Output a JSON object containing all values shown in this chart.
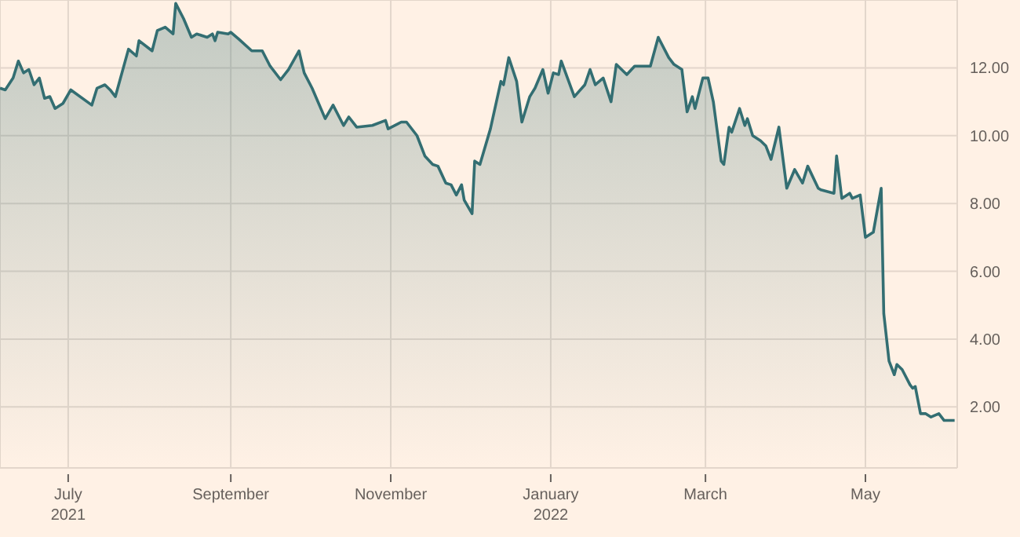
{
  "chart_data": {
    "type": "area",
    "x": [
      "2021-06-05",
      "2021-06-07",
      "2021-06-10",
      "2021-06-12",
      "2021-06-14",
      "2021-06-16",
      "2021-06-18",
      "2021-06-20",
      "2021-06-22",
      "2021-06-24",
      "2021-06-26",
      "2021-06-29",
      "2021-07-02",
      "2021-07-10",
      "2021-07-12",
      "2021-07-15",
      "2021-07-17",
      "2021-07-19",
      "2021-07-24",
      "2021-07-27",
      "2021-07-28",
      "2021-08-02",
      "2021-08-04",
      "2021-08-07",
      "2021-08-10",
      "2021-08-11",
      "2021-08-14",
      "2021-08-17",
      "2021-08-19",
      "2021-08-23",
      "2021-08-25",
      "2021-08-26",
      "2021-08-27",
      "2021-08-31",
      "2021-09-01",
      "2021-09-04",
      "2021-09-09",
      "2021-09-13",
      "2021-09-16",
      "2021-09-20",
      "2021-09-23",
      "2021-09-27",
      "2021-09-29",
      "2021-10-02",
      "2021-10-07",
      "2021-10-10",
      "2021-10-14",
      "2021-10-16",
      "2021-10-19",
      "2021-10-25",
      "2021-10-30",
      "2021-10-31",
      "2021-11-05",
      "2021-11-07",
      "2021-11-11",
      "2021-11-14",
      "2021-11-17",
      "2021-11-19",
      "2021-11-22",
      "2021-11-24",
      "2021-11-26",
      "2021-11-28",
      "2021-11-29",
      "2021-12-02",
      "2021-12-03",
      "2021-12-05",
      "2021-12-09",
      "2021-12-13",
      "2021-12-14",
      "2021-12-16",
      "2021-12-19",
      "2021-12-21",
      "2021-12-24",
      "2021-12-26",
      "2021-12-29",
      "2021-12-31",
      "2022-01-02",
      "2022-01-04",
      "2022-01-05",
      "2022-01-10",
      "2022-01-14",
      "2022-01-16",
      "2022-01-18",
      "2022-01-21",
      "2022-01-24",
      "2022-01-26",
      "2022-01-30",
      "2022-02-02",
      "2022-02-08",
      "2022-02-11",
      "2022-02-15",
      "2022-02-17",
      "2022-02-20",
      "2022-02-22",
      "2022-02-24",
      "2022-02-25",
      "2022-02-28",
      "2022-03-02",
      "2022-03-04",
      "2022-03-07",
      "2022-03-08",
      "2022-03-10",
      "2022-03-11",
      "2022-03-14",
      "2022-03-16",
      "2022-03-17",
      "2022-03-19",
      "2022-03-22",
      "2022-03-24",
      "2022-03-26",
      "2022-03-29",
      "2022-04-01",
      "2022-04-04",
      "2022-04-07",
      "2022-04-09",
      "2022-04-13",
      "2022-04-14",
      "2022-04-19",
      "2022-04-20",
      "2022-04-22",
      "2022-04-25",
      "2022-04-26",
      "2022-04-29",
      "2022-05-01",
      "2022-05-04",
      "2022-05-07",
      "2022-05-08",
      "2022-05-10",
      "2022-05-12",
      "2022-05-13",
      "2022-05-15",
      "2022-05-18",
      "2022-05-19",
      "2022-05-20",
      "2022-05-22",
      "2022-05-24",
      "2022-05-26",
      "2022-05-29",
      "2022-05-31",
      "2022-06-04"
    ],
    "series": [
      {
        "color": "#336e72",
        "values": [
          11.4,
          11.35,
          11.7,
          12.2,
          11.85,
          11.95,
          11.5,
          11.7,
          11.1,
          11.15,
          10.8,
          10.95,
          11.35,
          10.9,
          11.4,
          11.5,
          11.35,
          11.15,
          12.55,
          12.35,
          12.8,
          12.5,
          13.1,
          13.2,
          13.0,
          13.9,
          13.45,
          12.9,
          13.0,
          12.9,
          13.0,
          12.8,
          13.05,
          13.0,
          13.05,
          12.85,
          12.5,
          12.5,
          12.05,
          11.65,
          11.95,
          12.5,
          11.85,
          11.4,
          10.5,
          10.9,
          10.3,
          10.55,
          10.25,
          10.3,
          10.45,
          10.2,
          10.4,
          10.4,
          10.0,
          9.4,
          9.15,
          9.1,
          8.6,
          8.55,
          8.25,
          8.55,
          8.1,
          7.7,
          9.25,
          9.15,
          10.2,
          11.6,
          11.5,
          12.3,
          11.6,
          10.4,
          11.15,
          11.4,
          11.95,
          11.25,
          11.85,
          11.8,
          12.2,
          11.15,
          11.5,
          11.95,
          11.5,
          11.7,
          11.0,
          12.1,
          11.8,
          12.05,
          12.05,
          12.9,
          12.3,
          12.1,
          11.95,
          10.7,
          11.15,
          10.8,
          11.7,
          11.7,
          11.0,
          9.25,
          9.15,
          10.25,
          10.1,
          10.8,
          10.3,
          10.5,
          10.0,
          9.85,
          9.7,
          9.3,
          10.25,
          8.45,
          9.0,
          8.6,
          9.1,
          8.45,
          8.4,
          8.3,
          9.4,
          8.15,
          8.3,
          8.15,
          8.25,
          7.0,
          7.15,
          8.45,
          4.75,
          3.35,
          2.95,
          3.25,
          3.1,
          2.65,
          2.55,
          2.6,
          1.8,
          1.8,
          1.7,
          1.8,
          1.6,
          1.6
        ]
      }
    ],
    "xlim": [
      "2021-06-05",
      "2022-06-05"
    ],
    "xticks": [
      {
        "value": "2021-07-01",
        "label": "July 2021"
      },
      {
        "value": "2021-09-01",
        "label": "September"
      },
      {
        "value": "2021-11-01",
        "label": "November"
      },
      {
        "value": "2022-01-01",
        "label": "January 2022"
      },
      {
        "value": "2022-03-01",
        "label": "March"
      },
      {
        "value": "2022-05-01",
        "label": "May"
      }
    ],
    "ylim": [
      0.2,
      14
    ],
    "yticks": [
      {
        "value": 2,
        "label": "2.00"
      },
      {
        "value": 4,
        "label": "4.00"
      },
      {
        "value": 6,
        "label": "6.00"
      },
      {
        "value": 8,
        "label": "8.00"
      },
      {
        "value": 10,
        "label": "10.00"
      },
      {
        "value": 12,
        "label": "12.00"
      }
    ],
    "grid": true
  }
}
